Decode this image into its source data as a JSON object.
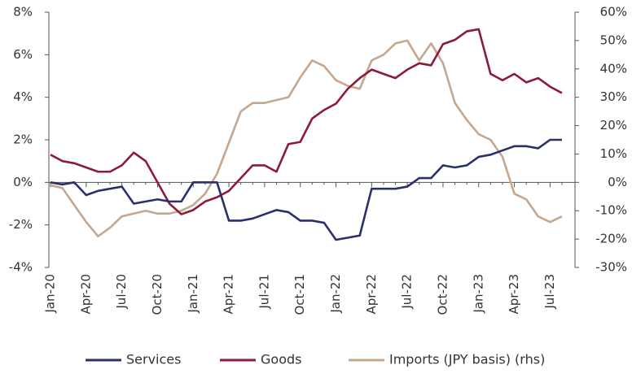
{
  "chart_data": {
    "type": "line",
    "categories": [
      "Jan-20",
      null,
      null,
      "Apr-20",
      null,
      null,
      "Jul-20",
      null,
      null,
      "Oct-20",
      null,
      null,
      "Jan-21",
      null,
      null,
      "Apr-21",
      null,
      null,
      "Jul-21",
      null,
      null,
      "Oct-21",
      null,
      null,
      "Jan-22",
      null,
      null,
      "Apr-22",
      null,
      null,
      "Jul-22",
      null,
      null,
      "Oct-22",
      null,
      null,
      "Jan-23",
      null,
      null,
      "Apr-23",
      null,
      null,
      "Jul-23",
      null
    ],
    "series": [
      {
        "name": "Services",
        "color": "#2b2f6c",
        "values": [
          0,
          -0.1,
          0,
          -0.6,
          -0.4,
          -0.3,
          -0.2,
          -1.0,
          -0.9,
          -0.8,
          -0.9,
          -0.9,
          0,
          0,
          0,
          -1.8,
          -1.8,
          -1.7,
          -1.5,
          -1.3,
          -1.4,
          -1.8,
          -1.8,
          -1.9,
          -2.7,
          -2.6,
          -2.5,
          -0.3,
          -0.3,
          -0.3,
          -0.2,
          0.2,
          0.2,
          0.8,
          0.7,
          0.8,
          1.2,
          1.3,
          1.5,
          1.7,
          1.7,
          1.6,
          2.0,
          2.0
        ]
      },
      {
        "name": "Goods",
        "color": "#8c1b3b",
        "values": [
          1.3,
          1.0,
          0.9,
          0.7,
          0.5,
          0.5,
          0.8,
          1.4,
          1.0,
          0.0,
          -1.0,
          -1.5,
          -1.3,
          -0.9,
          -0.7,
          -0.4,
          0.2,
          0.8,
          0.8,
          0.5,
          1.8,
          1.9,
          3.0,
          3.4,
          3.7,
          4.4,
          4.9,
          5.3,
          5.1,
          4.9,
          5.3,
          5.6,
          5.5,
          6.5,
          6.7,
          7.1,
          7.2,
          5.1,
          4.8,
          5.1,
          4.7,
          4.9,
          4.5,
          4.2
        ]
      },
      {
        "name": "Imports (JPY basis) (rhs)",
        "color": "#c4a78f",
        "axis": "y2",
        "values": [
          -1,
          -2,
          -8,
          -14,
          -19,
          -16,
          -12,
          -11,
          -10,
          -11,
          -11,
          -10,
          -8,
          -4,
          3,
          14,
          25,
          28,
          28,
          29,
          30,
          37,
          43,
          41,
          36,
          34,
          33,
          43,
          45,
          49,
          50,
          43,
          49,
          42,
          28,
          22,
          17,
          15,
          9,
          -4,
          -6,
          -12,
          -14,
          -12
        ]
      }
    ],
    "ylim": [
      -4,
      8
    ],
    "yticks": [
      {
        "value": -4,
        "label": "-4%"
      },
      {
        "value": -2,
        "label": "-2%"
      },
      {
        "value": 0,
        "label": "0%"
      },
      {
        "value": 2,
        "label": "2%"
      },
      {
        "value": 4,
        "label": "4%"
      },
      {
        "value": 6,
        "label": "6%"
      },
      {
        "value": 8,
        "label": "8%"
      }
    ],
    "y2lim": [
      -30,
      60
    ],
    "y2ticks": [
      {
        "value": -30,
        "label": "-30%"
      },
      {
        "value": -20,
        "label": "-20%"
      },
      {
        "value": -10,
        "label": "-10%"
      },
      {
        "value": 0,
        "label": "0%"
      },
      {
        "value": 10,
        "label": "10%"
      },
      {
        "value": 20,
        "label": "20%"
      },
      {
        "value": 30,
        "label": "30%"
      },
      {
        "value": 40,
        "label": "40%"
      },
      {
        "value": 50,
        "label": "50%"
      },
      {
        "value": 60,
        "label": "60%"
      }
    ],
    "legend": "bottom"
  }
}
